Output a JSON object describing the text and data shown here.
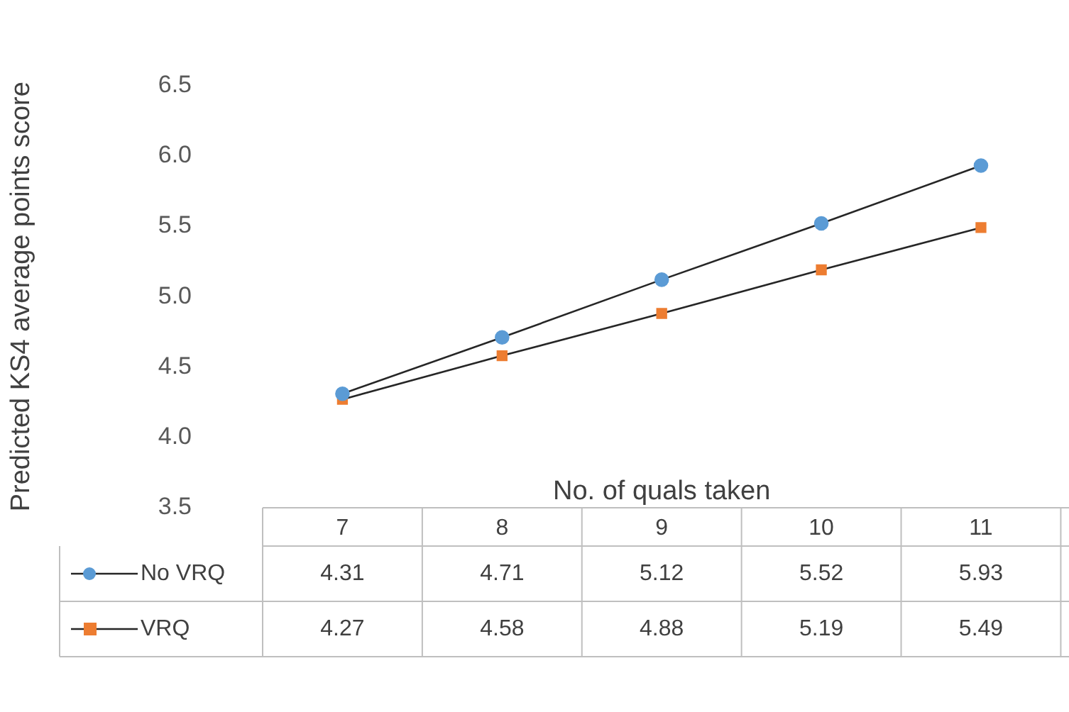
{
  "chart_data": {
    "type": "line",
    "ylabel": "Predicted KS4 average points score",
    "xlabel": "No. of quals taken",
    "categories": [
      "7",
      "8",
      "9",
      "10",
      "11"
    ],
    "series": [
      {
        "name": "No VRQ",
        "color": "#5b9bd5",
        "marker": "circle",
        "values": [
          4.31,
          4.71,
          5.12,
          5.52,
          5.93
        ]
      },
      {
        "name": "VRQ",
        "color": "#ed7d31",
        "marker": "square",
        "values": [
          4.27,
          4.58,
          4.88,
          5.19,
          5.49
        ]
      }
    ],
    "ylim": [
      3.5,
      6.5
    ],
    "yticks": [
      3.5,
      {
        "value": 4,
        "label": "4.0"
      },
      4.5,
      {
        "value": 5,
        "label": "5.0"
      },
      5.5,
      {
        "value": 6,
        "label": "6.0"
      },
      6.5
    ],
    "grid": false,
    "legend": "bottom",
    "data_labels": true
  }
}
